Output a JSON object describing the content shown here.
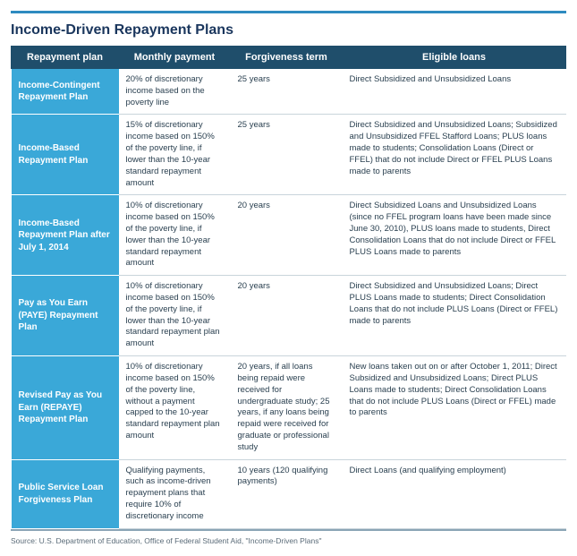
{
  "title": "Income-Driven Repayment Plans",
  "headers": {
    "plan": "Repayment plan",
    "payment": "Monthly payment",
    "term": "Forgiveness term",
    "eligible": "Eligible loans"
  },
  "rows": [
    {
      "plan": "Income-Contingent Repayment Plan",
      "payment": "20% of discretionary income based on the poverty line",
      "term": "25 years",
      "eligible": "Direct Subsidized and Unsubsidized Loans"
    },
    {
      "plan": "Income-Based Repayment Plan",
      "payment": "15% of discretionary income based on 150% of the poverty line, if lower than the 10-year standard repayment amount",
      "term": "25 years",
      "eligible": "Direct Subsidized and Unsubsidized Loans; Subsidized and Unsubsidized FFEL Stafford Loans; PLUS loans made to students; Consolidation Loans (Direct or FFEL) that do not include Direct or FFEL PLUS Loans made to parents"
    },
    {
      "plan": "Income-Based Repayment Plan after July 1, 2014",
      "payment": "10% of discretionary income based on 150% of the poverty line, if lower than the 10-year standard repayment amount",
      "term": "20 years",
      "eligible": "Direct Subsidized Loans and Unsubsidized Loans (since no FFEL program loans have been made since June 30, 2010), PLUS loans made to students, Direct Consolidation Loans that do not include Direct or FFEL PLUS Loans made to parents"
    },
    {
      "plan": "Pay as You Earn (PAYE) Repayment Plan",
      "payment": "10% of discretionary income based on 150% of the poverty line, if lower than the 10-year standard repayment plan amount",
      "term": "20 years",
      "eligible": "Direct Subsidized and Unsubsidized Loans; Direct PLUS Loans made to students; Direct Consolidation Loans that do not include PLUS Loans (Direct or FFEL) made to parents"
    },
    {
      "plan": "Revised Pay as You Earn (REPAYE) Repayment Plan",
      "payment": "10% of discretionary income based on 150% of the poverty line, without a payment capped to the 10-year standard repayment plan amount",
      "term": "20 years, if all loans being repaid were received for undergraduate study; 25 years, if any loans being repaid were received for graduate or professional study",
      "eligible": "New loans taken out on or after October 1, 2011; Direct Subsidized and Unsubsidized Loans; Direct PLUS Loans made to students; Direct Consolidation Loans that do not include PLUS Loans (Direct or FFEL) made to parents"
    },
    {
      "plan": "Public Service Loan Forgiveness Plan",
      "payment": "Qualifying payments, such as income-driven repayment plans that require 10% of discretionary income",
      "term": "10 years (120 qualifying payments)",
      "eligible": "Direct Loans (and qualifying employment)"
    }
  ],
  "source": "Source: U.S. Department of Education, Office of Federal Student Aid, \"Income-Driven Plans\"",
  "colors": {
    "accent": "#2e8bc0",
    "header_bg": "#1f4e6b",
    "plan_bg": "#3aa8d8",
    "text": "#2a4050",
    "rule": "#8aa4b5"
  }
}
